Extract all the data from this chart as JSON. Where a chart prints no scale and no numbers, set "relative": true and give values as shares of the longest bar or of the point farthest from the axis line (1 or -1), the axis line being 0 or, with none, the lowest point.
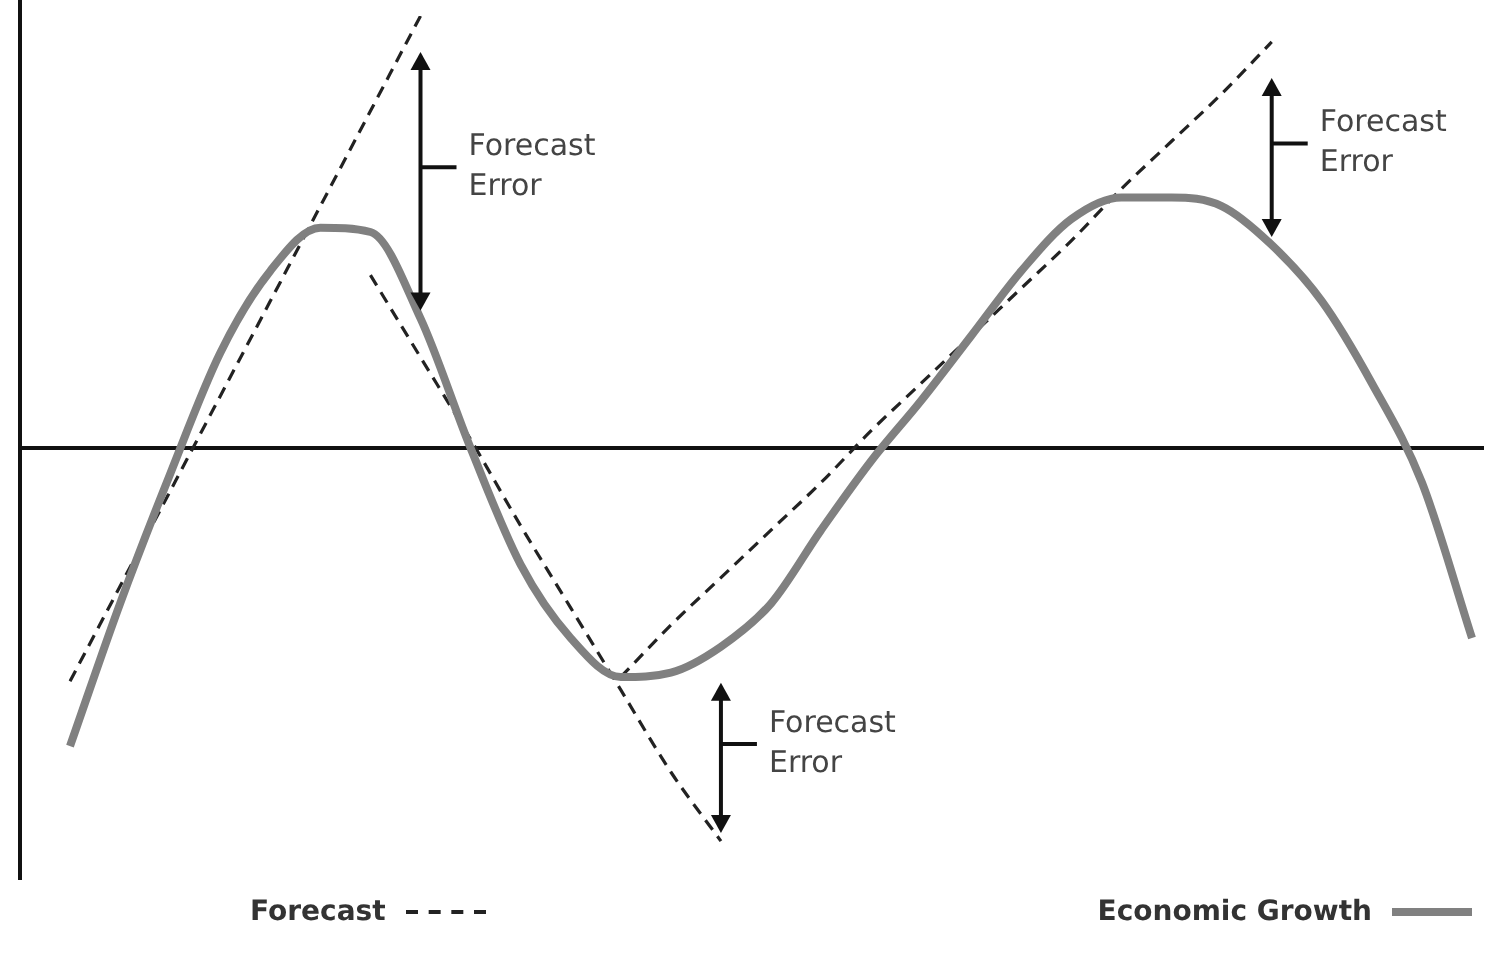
{
  "chart_data": {
    "type": "line",
    "relative": true,
    "legend": "bottom",
    "categories": [
      null,
      null,
      null,
      null,
      null,
      null,
      null,
      null,
      null,
      null,
      null,
      null,
      null,
      null,
      null,
      null,
      null,
      null,
      null,
      null,
      null,
      null,
      null,
      null,
      null,
      null,
      null,
      null,
      null
    ],
    "series": [
      {
        "name": "Economic Growth",
        "color": "#808080",
        "line_style": "solid",
        "values": [
          -0.69,
          -0.36,
          -0.06,
          0.22,
          0.41,
          0.51,
          0.5,
          0.3,
          0,
          -0.27,
          -0.44,
          -0.53,
          -0.52,
          -0.46,
          -0.36,
          -0.19,
          -0.03,
          0.11,
          0.26,
          0.41,
          0.53,
          0.58,
          0.58,
          0.56,
          0.47,
          0.34,
          0.15,
          -0.08,
          -0.44
        ]
      },
      {
        "name": "Forecast",
        "color": "#222222",
        "line_style": "dashed",
        "values": [
          -0.54,
          -0.32,
          -0.1,
          0.12,
          0.34,
          0.56,
          0.78,
          1.0,
          null,
          null,
          null,
          null,
          null,
          null,
          null,
          null,
          null,
          null,
          null,
          null,
          null,
          null,
          null,
          null,
          null,
          null,
          null,
          null,
          null
        ]
      },
      {
        "color": "#222222",
        "line_style": "dashed",
        "values": [
          null,
          null,
          null,
          null,
          null,
          null,
          0.4,
          0.21,
          0.02,
          -0.18,
          -0.37,
          -0.56,
          -0.75,
          -0.91,
          null,
          null,
          null,
          null,
          null,
          null,
          null,
          null,
          null,
          null,
          null,
          null,
          null,
          null,
          null
        ]
      },
      {
        "color": "#222222",
        "line_style": "dashed",
        "values": [
          null,
          null,
          null,
          null,
          null,
          null,
          null,
          null,
          null,
          null,
          null,
          -0.53,
          -0.41,
          -0.3,
          -0.19,
          -0.08,
          0.04,
          0.15,
          0.26,
          0.37,
          0.48,
          0.6,
          0.71,
          0.82,
          0.94,
          null,
          null,
          null,
          null
        ]
      }
    ],
    "annotations": [
      "Forecast\nError",
      "Forecast\nError",
      "Forecast\nError"
    ]
  }
}
